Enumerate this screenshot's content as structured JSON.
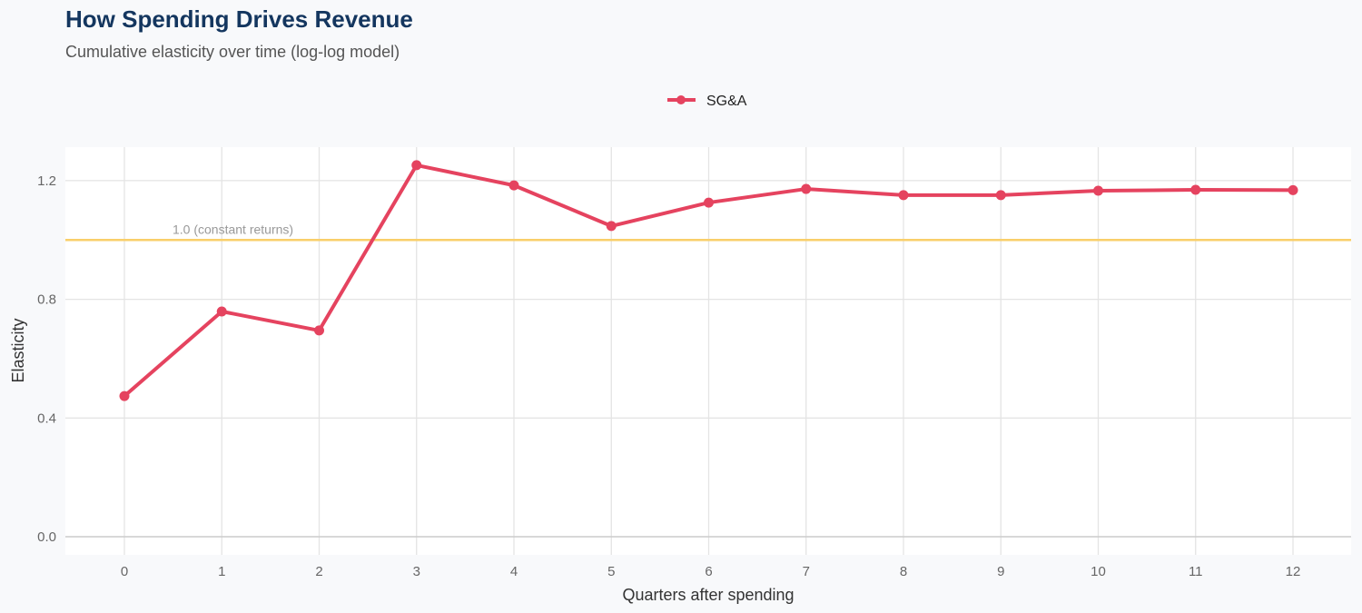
{
  "chart_data": {
    "type": "line",
    "title": "How Spending Drives Revenue",
    "subtitle": "Cumulative elasticity over time (log-log model)",
    "xlabel": "Quarters after spending",
    "ylabel": "Elasticity",
    "x": [
      0,
      1,
      2,
      3,
      4,
      5,
      6,
      7,
      8,
      9,
      10,
      11,
      12
    ],
    "x_ticks": [
      "0",
      "1",
      "2",
      "3",
      "4",
      "5",
      "6",
      "7",
      "8",
      "9",
      "10",
      "11",
      "12"
    ],
    "y_ticks": [
      "0.0",
      "0.4",
      "0.8",
      "1.2"
    ],
    "ylim": [
      -0.06,
      1.32
    ],
    "xlim": [
      -0.6,
      12.6
    ],
    "grid": true,
    "legend_position": "top",
    "series": [
      {
        "name": "SG&A",
        "color": "#e5435f",
        "values": [
          0.474,
          0.759,
          0.695,
          1.252,
          1.184,
          1.047,
          1.126,
          1.172,
          1.151,
          1.151,
          1.166,
          1.169,
          1.168
        ]
      }
    ],
    "reference_line": {
      "y": 1.0,
      "label": "1.0 (constant returns)",
      "color": "#f9cf6a"
    }
  }
}
